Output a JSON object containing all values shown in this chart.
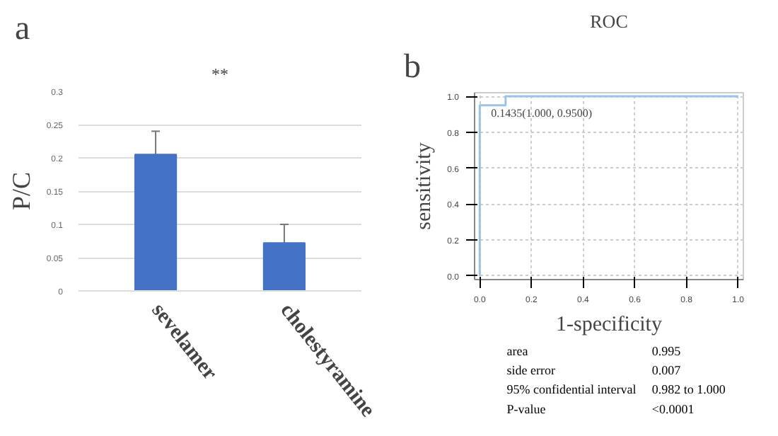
{
  "chart_data": [
    {
      "type": "bar",
      "ylabel": "P/C",
      "categories": [
        "sevelamer",
        "cholestyramine"
      ],
      "values": [
        0.205,
        0.072
      ],
      "errors": [
        0.035,
        0.028
      ],
      "color": "#4472c4",
      "ylim": [
        0,
        0.3
      ],
      "yticks": [
        0,
        0.05,
        0.1,
        0.15,
        0.2,
        0.25,
        0.3
      ],
      "grid": "y",
      "annotations": [
        "a",
        "**"
      ]
    },
    {
      "type": "line",
      "title": "ROC",
      "xlabel": "1-specificity",
      "ylabel": "sensitivity",
      "series": [
        {
          "x": [
            0,
            0,
            0.1,
            0.1,
            1
          ],
          "values": [
            0,
            0.95,
            0.95,
            1,
            1
          ],
          "color": "#9dc3e6"
        }
      ],
      "xlim": [
        -0.02,
        1.02
      ],
      "ylim": [
        -0.02,
        1.02
      ],
      "xticks": [
        {
          "value": 0,
          "label": "0.0"
        },
        0.2,
        0.4,
        0.6,
        0.8,
        {
          "value": 1,
          "label": "1.0"
        }
      ],
      "yticks": [
        {
          "value": 0,
          "label": "0.0"
        },
        0.2,
        0.4,
        0.6,
        0.8,
        {
          "value": 1,
          "label": "1.0"
        }
      ],
      "grid": true,
      "line_style": "solid",
      "annotations": [
        "b",
        {
          "text": "0.1435(1.000, 0.9500)",
          "x": 0,
          "y": 0.95
        },
        "area",
        "0.995",
        "side error",
        "0.007",
        "95% confidential interval",
        "0.982 to 1.000",
        "P-value",
        "<0.0001"
      ]
    }
  ]
}
